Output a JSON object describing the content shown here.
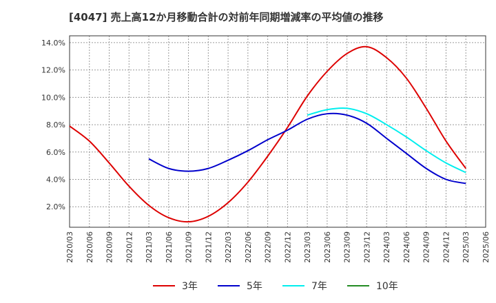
{
  "chart_data": {
    "type": "line",
    "title": "[4047]  売上高12か月移動合計の対前年同期増減率の平均値の推移",
    "xlabel": "",
    "ylabel": "",
    "ylim": [
      0.5,
      14.5
    ],
    "y_ticks": [
      "2.0%",
      "4.0%",
      "6.0%",
      "8.0%",
      "10.0%",
      "12.0%",
      "14.0%"
    ],
    "y_tick_values": [
      2,
      4,
      6,
      8,
      10,
      12,
      14
    ],
    "x_ticks": [
      "2020/03",
      "2020/06",
      "2020/09",
      "2020/12",
      "2021/03",
      "2021/06",
      "2021/09",
      "2021/12",
      "2022/03",
      "2022/06",
      "2022/09",
      "2022/12",
      "2023/03",
      "2023/06",
      "2023/09",
      "2023/12",
      "2024/03",
      "2024/06",
      "2024/09",
      "2024/12",
      "2025/03",
      "2025/06"
    ],
    "grid": true,
    "legend_position": "bottom",
    "series": [
      {
        "name": "3年",
        "color": "#dd0000",
        "x": [
          "2020/03",
          "2020/06",
          "2020/09",
          "2020/12",
          "2021/03",
          "2021/06",
          "2021/09",
          "2021/12",
          "2022/03",
          "2022/06",
          "2022/09",
          "2022/12",
          "2023/03",
          "2023/06",
          "2023/09",
          "2023/12",
          "2024/03",
          "2024/06",
          "2024/09",
          "2024/12",
          "2025/03"
        ],
        "values": [
          7.9,
          6.8,
          5.2,
          3.5,
          2.1,
          1.2,
          0.9,
          1.3,
          2.3,
          3.8,
          5.7,
          7.8,
          10.1,
          11.9,
          13.2,
          13.7,
          12.9,
          11.4,
          9.2,
          6.8,
          4.8
        ]
      },
      {
        "name": "5年",
        "color": "#0000cc",
        "x": [
          "2021/03",
          "2021/06",
          "2021/09",
          "2021/12",
          "2022/03",
          "2022/06",
          "2022/09",
          "2022/12",
          "2023/03",
          "2023/06",
          "2023/09",
          "2023/12",
          "2024/03",
          "2024/06",
          "2024/09",
          "2024/12",
          "2025/03"
        ],
        "values": [
          5.5,
          4.8,
          4.6,
          4.8,
          5.4,
          6.1,
          6.9,
          7.6,
          8.4,
          8.8,
          8.7,
          8.1,
          7.0,
          5.9,
          4.8,
          4.0,
          3.7
        ]
      },
      {
        "name": "7年",
        "color": "#00eeee",
        "x": [
          "2023/03",
          "2023/06",
          "2023/09",
          "2023/12",
          "2024/03",
          "2024/06",
          "2024/09",
          "2024/12",
          "2025/03"
        ],
        "values": [
          8.7,
          9.1,
          9.2,
          8.8,
          8.0,
          7.1,
          6.1,
          5.2,
          4.5
        ]
      },
      {
        "name": "10年",
        "color": "#228b22",
        "x": [],
        "values": []
      }
    ]
  }
}
